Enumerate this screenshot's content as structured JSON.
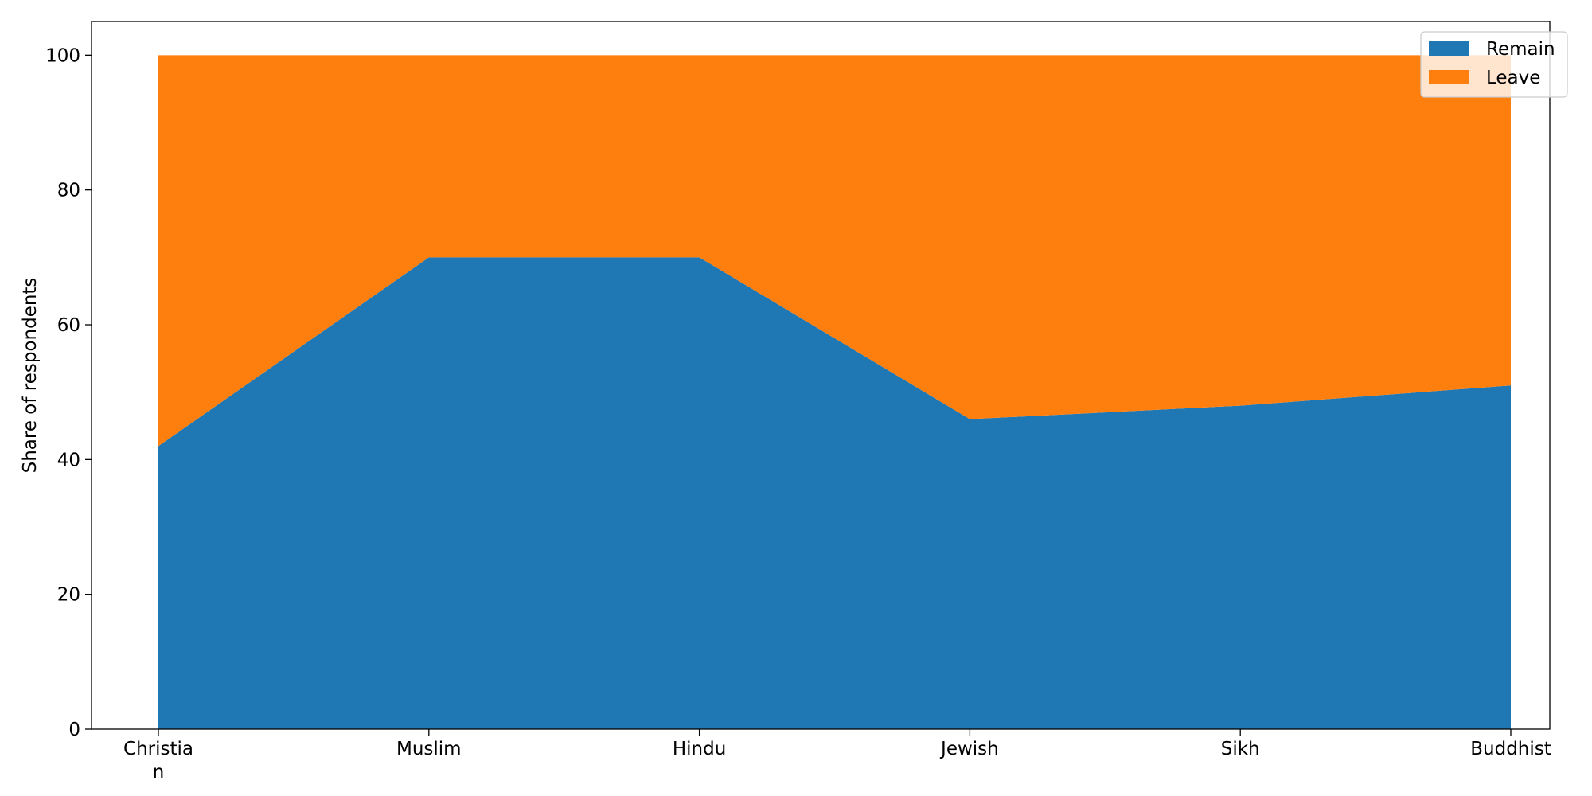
{
  "chart_data": {
    "type": "area",
    "stacked": true,
    "categories": [
      "Christian",
      "Muslim",
      "Hindu",
      "Jewish",
      "Sikh",
      "Buddhist"
    ],
    "category_display": [
      [
        "Christia",
        "n"
      ],
      [
        "Muslim"
      ],
      [
        "Hindu"
      ],
      [
        "Jewish"
      ],
      [
        "Sikh"
      ],
      [
        "Buddhist"
      ]
    ],
    "series": [
      {
        "name": "Remain",
        "values": [
          42,
          70,
          70,
          46,
          48,
          51
        ],
        "color": "#1f77b4"
      },
      {
        "name": "Leave",
        "values": [
          58,
          30,
          30,
          54,
          52,
          49
        ],
        "color": "#ff7f0e"
      }
    ],
    "title": "",
    "xlabel": "",
    "ylabel": "Share of respondents",
    "ylim": [
      0,
      105
    ],
    "yticks": [
      0,
      20,
      40,
      60,
      80,
      100
    ],
    "grid": false,
    "legend_position": "top-right"
  }
}
